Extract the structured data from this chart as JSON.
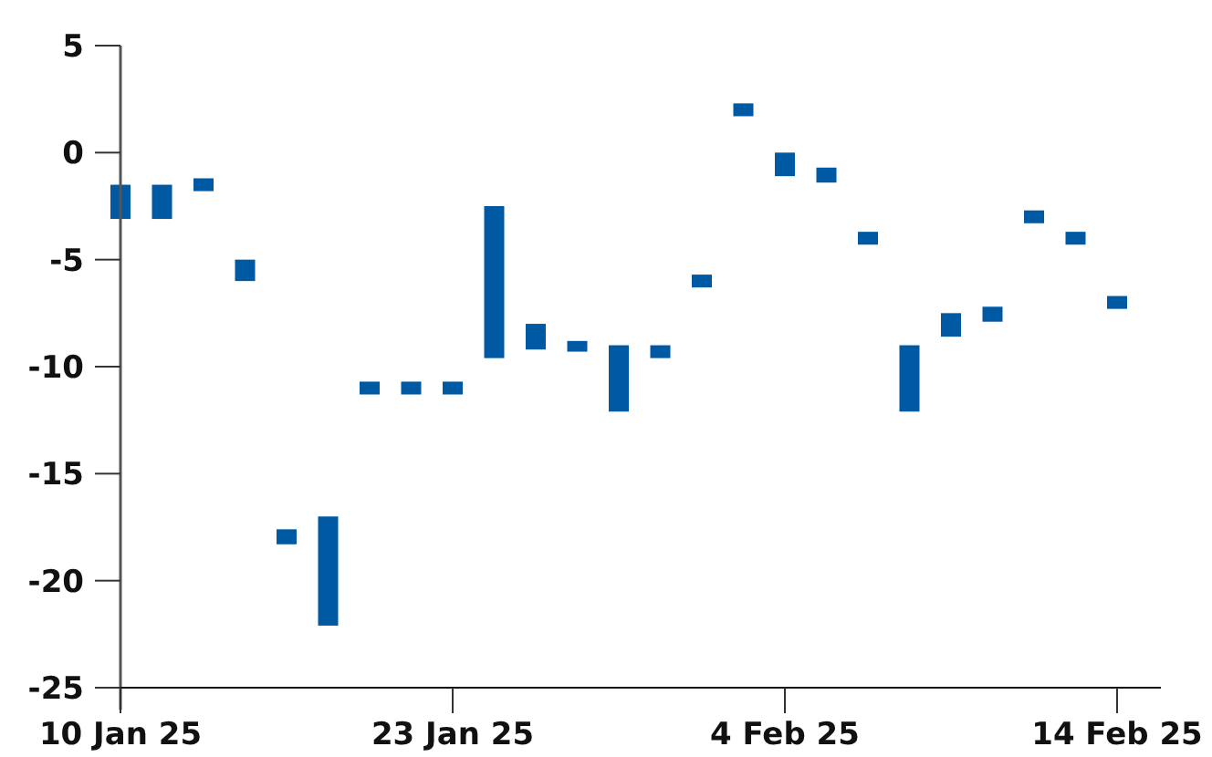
{
  "chart_data": {
    "type": "bar",
    "categories": [
      "10 Jan 25",
      null,
      null,
      null,
      null,
      null,
      null,
      null,
      "23 Jan 25",
      null,
      null,
      null,
      null,
      null,
      null,
      null,
      "4 Feb 25",
      null,
      null,
      null,
      null,
      null,
      null,
      null,
      "14 Feb 25"
    ],
    "base": [
      -3.1,
      -3.1,
      -1.8,
      -6.0,
      -18.3,
      -22.1,
      -11.3,
      -11.3,
      -11.3,
      -9.6,
      -9.2,
      -9.3,
      -12.1,
      -9.6,
      -6.3,
      1.7,
      -1.1,
      -1.4,
      -4.3,
      -12.1,
      -8.6,
      -7.9,
      -3.3,
      -4.3,
      -7.3
    ],
    "values": [
      1.6,
      1.6,
      0.6,
      1.0,
      0.7,
      5.1,
      0.6,
      0.6,
      0.6,
      7.1,
      1.2,
      0.5,
      3.1,
      0.6,
      0.6,
      0.6,
      1.1,
      0.7,
      0.6,
      3.1,
      1.1,
      0.7,
      0.6,
      0.6,
      0.6
    ],
    "color": "#0059a3",
    "ylim": [
      -25,
      5
    ],
    "yticks": [
      -25,
      -20,
      -15,
      -10,
      -5,
      0,
      5
    ]
  }
}
